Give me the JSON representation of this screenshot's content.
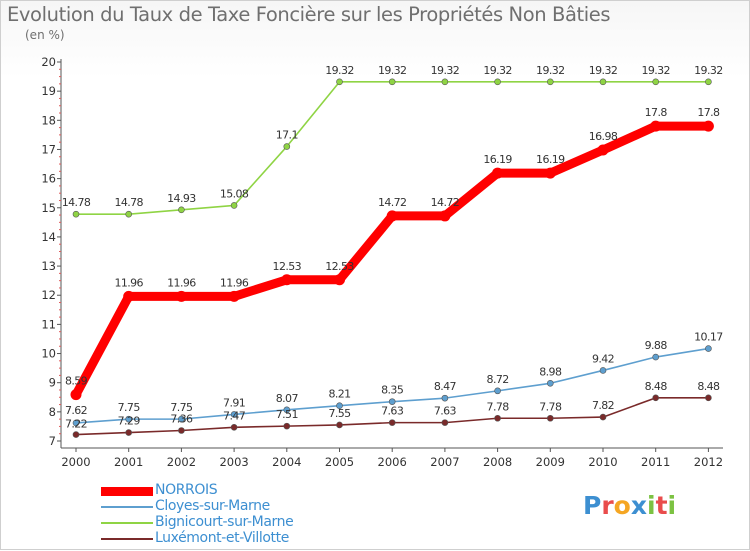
{
  "title": "Evolution du Taux de Taxe Foncière sur les Propriétés Non Bâties",
  "subtitle": "(en %)",
  "chart_data": {
    "type": "line",
    "title": "Evolution du Taux de Taxe Foncière sur les Propriétés Non Bâties",
    "ylabel": "(en %)",
    "xlabel": "",
    "x": [
      "2000",
      "2001",
      "2002",
      "2003",
      "2004",
      "2005",
      "2006",
      "2007",
      "2008",
      "2009",
      "2010",
      "2011",
      "2012"
    ],
    "ylim": [
      7,
      20
    ],
    "yticks": [
      "7",
      "8",
      "9",
      "10",
      "11",
      "12",
      "13",
      "14",
      "15",
      "16",
      "17",
      "18",
      "19",
      "20"
    ],
    "grid": false,
    "legend_position": "bottom-left",
    "series": [
      {
        "name": "NORROIS",
        "color": "#ff0000",
        "values": [
          8.59,
          11.96,
          11.96,
          11.96,
          12.53,
          12.53,
          14.72,
          14.72,
          16.19,
          16.19,
          16.98,
          17.8,
          17.8
        ],
        "labels": [
          "8.59",
          "11.96",
          "11.96",
          "11.96",
          "12.53",
          "12.53",
          "14.72",
          "14.72",
          "16.19",
          "16.19",
          "16.98",
          "17.8",
          "17.8"
        ]
      },
      {
        "name": "Cloyes-sur-Marne",
        "color": "#5e9fcf",
        "values": [
          7.62,
          7.75,
          7.75,
          7.91,
          8.07,
          8.21,
          8.35,
          8.47,
          8.72,
          8.98,
          9.42,
          9.88,
          10.17
        ],
        "labels": [
          "7.62",
          "7.75",
          "7.75",
          "7.91",
          "8.07",
          "8.21",
          "8.35",
          "8.47",
          "8.72",
          "8.98",
          "9.42",
          "9.88",
          "10.17"
        ]
      },
      {
        "name": "Bignicourt-sur-Marne",
        "color": "#8fd444",
        "values": [
          14.78,
          14.78,
          14.93,
          15.08,
          17.1,
          19.32,
          19.32,
          19.32,
          19.32,
          19.32,
          19.32,
          19.32,
          19.32
        ],
        "labels": [
          "14.78",
          "14.78",
          "14.93",
          "15.08",
          "17.1",
          "19.32",
          "19.32",
          "19.32",
          "19.32",
          "19.32",
          "19.32",
          "19.32",
          "19.32"
        ]
      },
      {
        "name": "Luxémont-et-Villotte",
        "color": "#7a2a2a",
        "values": [
          7.22,
          7.29,
          7.36,
          7.47,
          7.51,
          7.55,
          7.63,
          7.63,
          7.78,
          7.78,
          7.82,
          8.48,
          8.48
        ],
        "labels": [
          "7.22",
          "7.29",
          "7.36",
          "7.47",
          "7.51",
          "7.55",
          "7.63",
          "7.63",
          "7.78",
          "7.78",
          "7.82",
          "8.48",
          "8.48"
        ]
      }
    ]
  },
  "legend": {
    "items": [
      {
        "label": "NORROIS",
        "color": "#ff0000"
      },
      {
        "label": "Cloyes-sur-Marne",
        "color": "#5e9fcf"
      },
      {
        "label": "Bignicourt-sur-Marne",
        "color": "#8fd444"
      },
      {
        "label": "Luxémont-et-Villotte",
        "color": "#7a2a2a"
      }
    ]
  },
  "logo": {
    "text": "Proxiti",
    "letters": [
      {
        "ch": "P",
        "color": "#3d8fd1"
      },
      {
        "ch": "r",
        "color": "#e94c4c"
      },
      {
        "ch": "o",
        "color": "#f5a623"
      },
      {
        "ch": "x",
        "color": "#3d8fd1"
      },
      {
        "ch": "i",
        "color": "#7cc242"
      },
      {
        "ch": "t",
        "color": "#e94c4c"
      },
      {
        "ch": "i",
        "color": "#7cc242"
      }
    ]
  }
}
